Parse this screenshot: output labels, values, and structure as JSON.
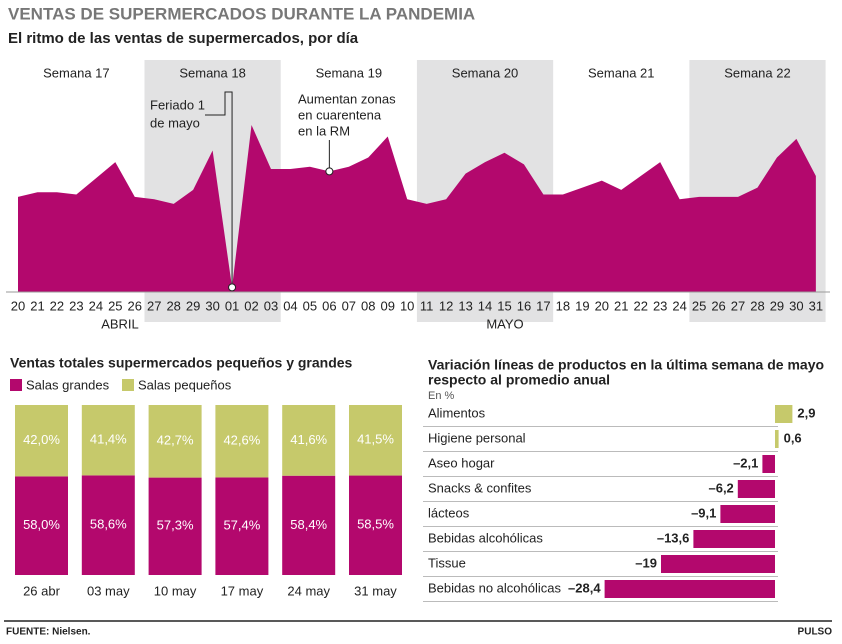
{
  "title": "VENTAS DE SUPERMERCADOS DURANTE LA PANDEMIA",
  "source": "FUENTE: Nielsen.",
  "brand": "PULSO",
  "chart_data": [
    {
      "type": "area",
      "title": "El ritmo de las ventas de supermercados, por día",
      "color": "#b3086d",
      "band_color": "#e2e2e3",
      "weeks": [
        "Semana 17",
        "Semana 18",
        "Semana 19",
        "Semana 20",
        "Semana 21",
        "Semana 22"
      ],
      "months": [
        "ABRIL",
        "MAYO"
      ],
      "annotations": [
        [
          "Feriado 1",
          "de mayo"
        ],
        [
          "Aumentan zonas",
          "en cuarentena",
          "en la RM"
        ]
      ],
      "categories": [
        "20",
        "21",
        "22",
        "23",
        "24",
        "25",
        "26",
        "27",
        "28",
        "29",
        "30",
        "01",
        "02",
        "03",
        "04",
        "05",
        "06",
        "07",
        "08",
        "09",
        "10",
        "11",
        "12",
        "13",
        "14",
        "15",
        "16",
        "17",
        "18",
        "19",
        "20",
        "21",
        "22",
        "23",
        "24",
        "25",
        "26",
        "27",
        "28",
        "29",
        "30",
        "31"
      ],
      "values": [
        41,
        43,
        43,
        42,
        49,
        56,
        41,
        40,
        38,
        44,
        61,
        2,
        72,
        53,
        53,
        54,
        52,
        54,
        58,
        67,
        40,
        38,
        40,
        51,
        56,
        60,
        55,
        42,
        42,
        45,
        48,
        44,
        50,
        56,
        40,
        41,
        41,
        41,
        45,
        58,
        66,
        50
      ],
      "ylim": [
        0,
        100
      ]
    },
    {
      "type": "stacked_bar",
      "title": "Ventas totales supermercados pequeños y grandes",
      "categories": [
        "26 abr",
        "03 may",
        "10 may",
        "17 may",
        "24 may",
        "31 may"
      ],
      "ylim": [
        0,
        100
      ],
      "series": [
        {
          "name": "Salas  grandes",
          "color": "#b3086d",
          "values": [
            58.0,
            58.6,
            57.3,
            57.4,
            58.4,
            58.5
          ],
          "value_labels": [
            "58,0%",
            "58,6%",
            "57,3%",
            "57,4%",
            "58,4%",
            "58,5%"
          ]
        },
        {
          "name": "Salas pequeños",
          "color": "#c6c96b",
          "values": [
            42.0,
            41.4,
            42.7,
            42.6,
            41.6,
            41.5
          ],
          "value_labels": [
            "42,0%",
            "41,4%",
            "42,7%",
            "42,6%",
            "41,6%",
            "41,5%"
          ]
        }
      ]
    },
    {
      "type": "hbar",
      "title": [
        "Variación líneas de productos en la última semana de mayo",
        "respecto al promedio anual"
      ],
      "subtitle": "En %",
      "categories": [
        "Alimentos",
        "Higiene personal",
        "Aseo hogar",
        "Snacks & confites",
        "lácteos",
        "Bebidas alcohólicas",
        "Tissue",
        "Bebidas no alcohólicas"
      ],
      "values": [
        2.9,
        0.6,
        -2.1,
        -6.2,
        -9.1,
        -13.6,
        -19,
        -28.4
      ],
      "value_labels": [
        "2,9",
        "0,6",
        "–2,1",
        "–6,2",
        "–9,1",
        "–13,6",
        "–19",
        "–28,4"
      ],
      "positive_color": "#c6c96b",
      "negative_color": "#b3086d",
      "xlim": [
        -30,
        5
      ]
    }
  ]
}
